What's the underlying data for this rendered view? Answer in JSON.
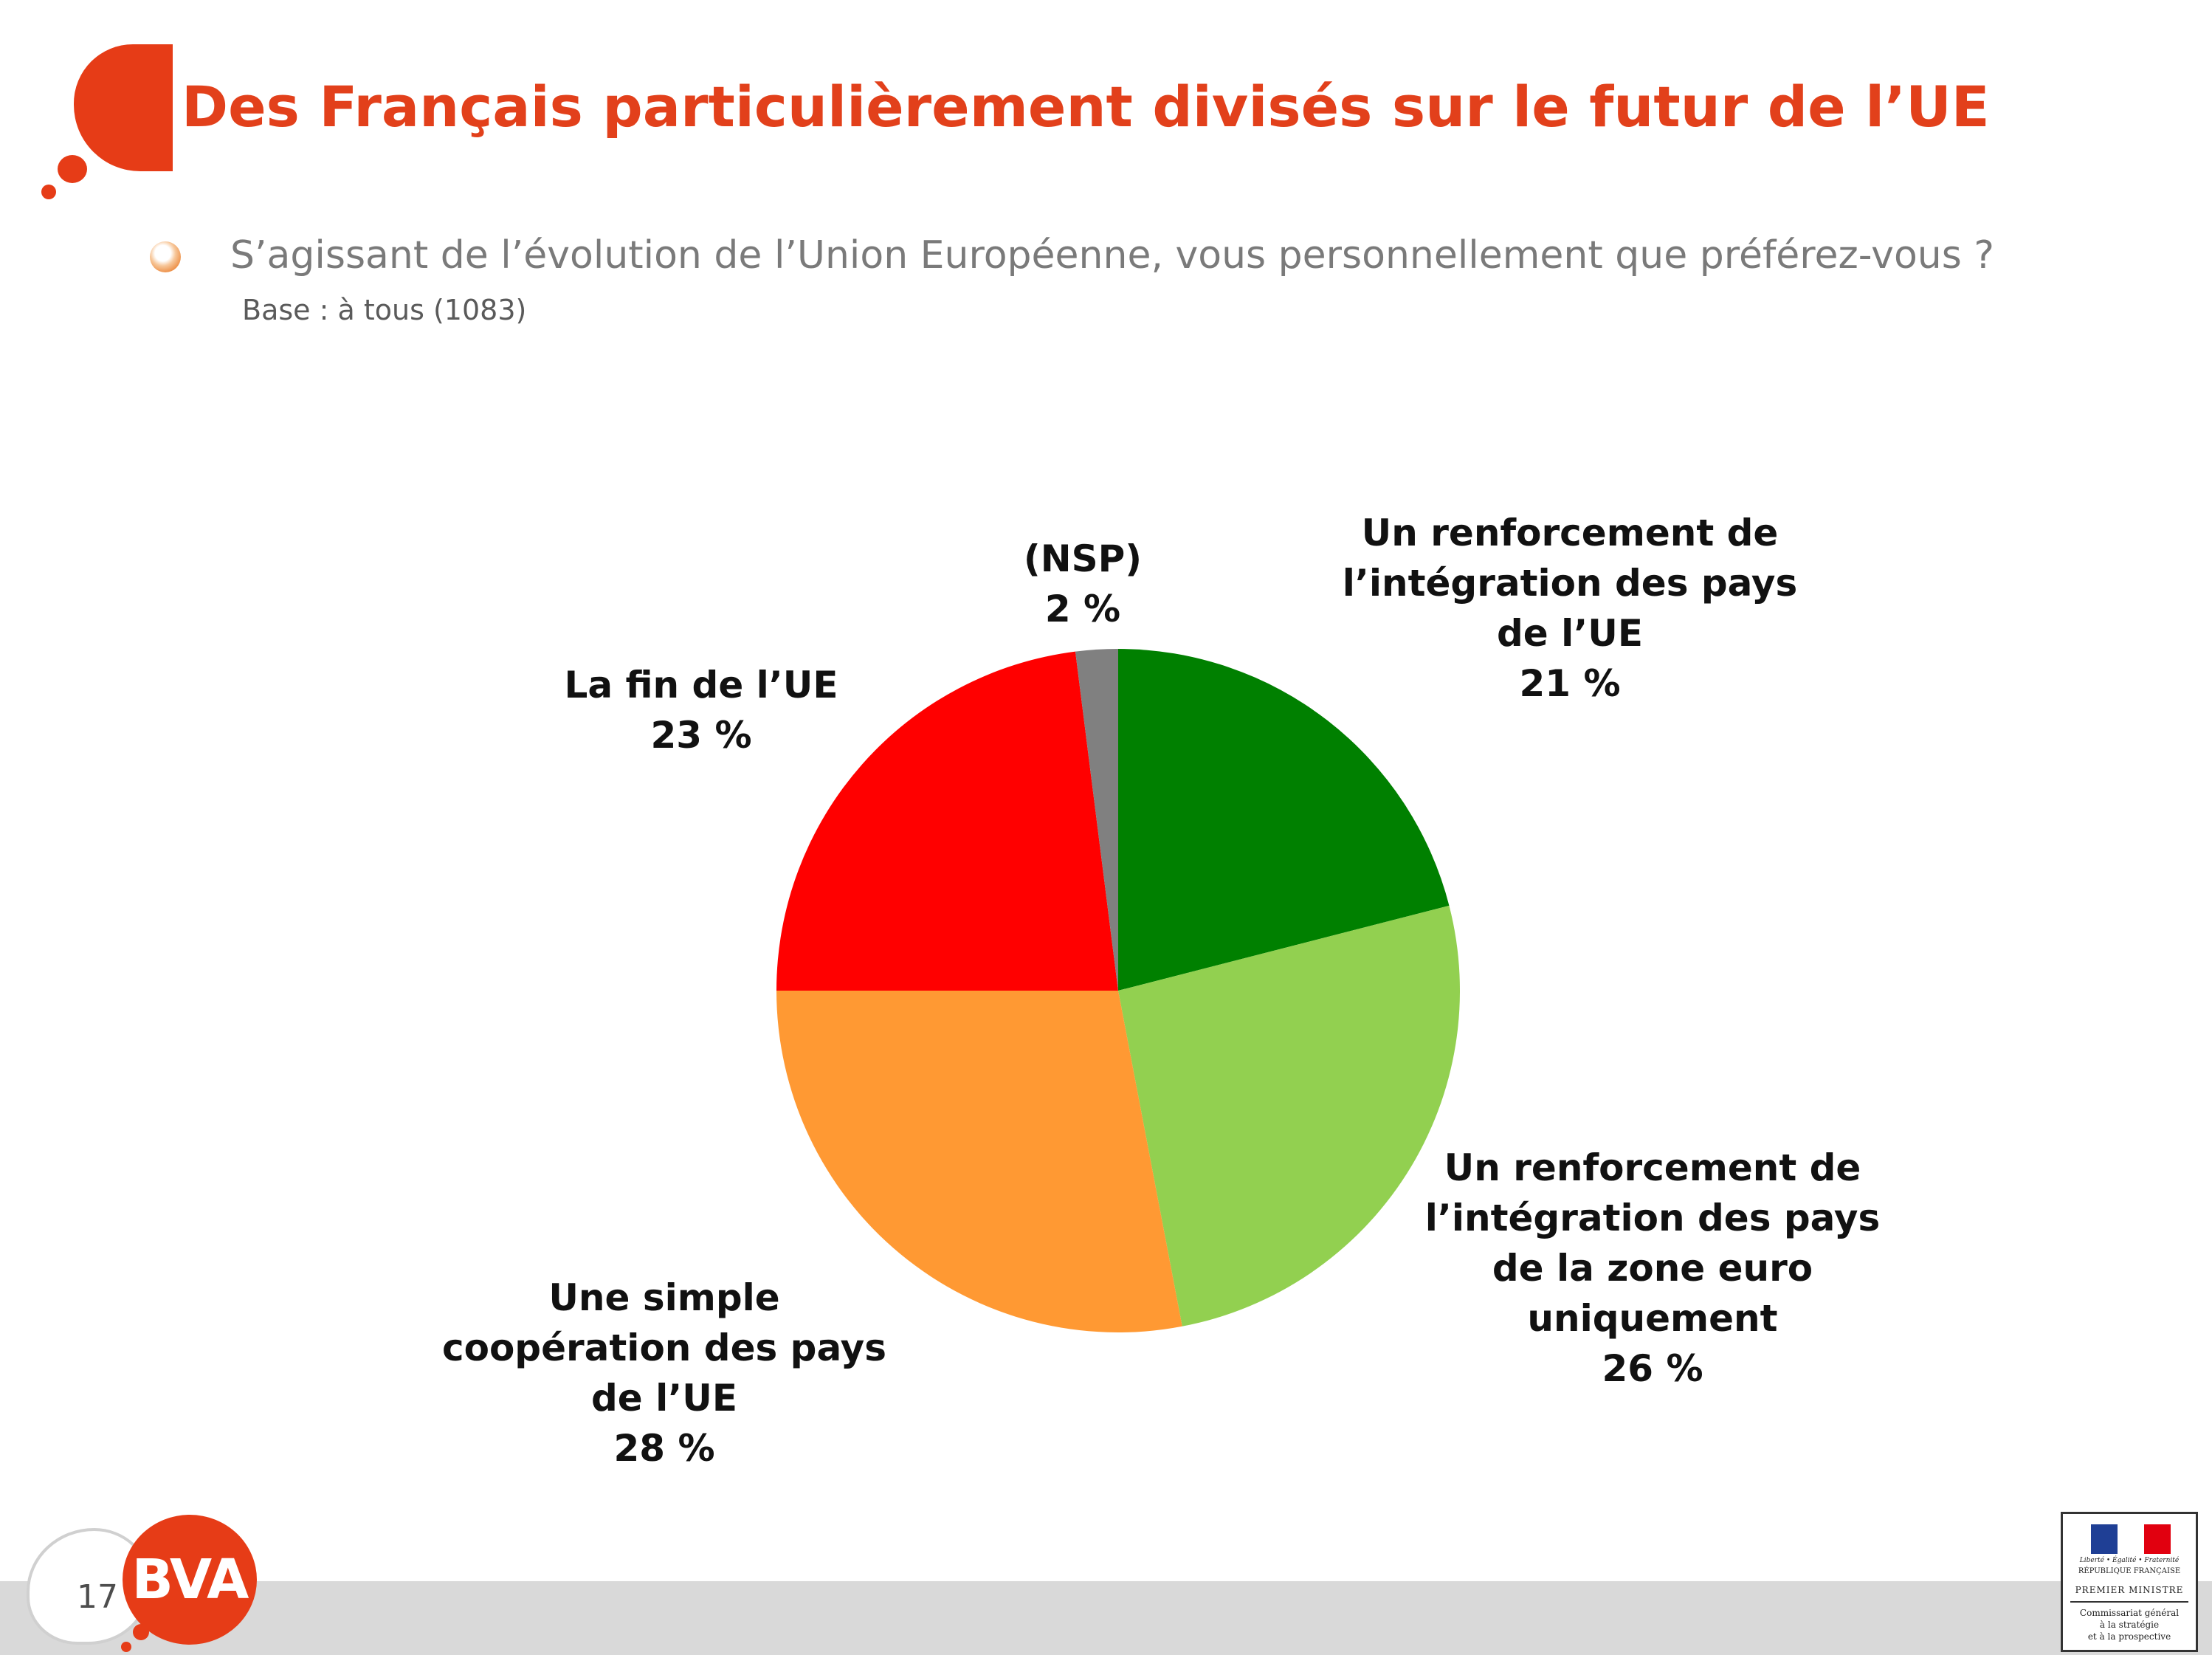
{
  "header": {
    "title": "Des Français particulièrement divisés sur le futur de l’UE",
    "question": "S’agissant de l’évolution de l’Union Européenne, vous personnellement que préférez-vous ?",
    "base": "Base : à tous (1083)"
  },
  "chart_data": {
    "type": "pie",
    "start_angle_deg": 0,
    "direction": "clockwise",
    "slices": [
      {
        "label": "Un renforcement de\nl’intégration des pays\nde l’UE",
        "value": 21,
        "value_label": "21 %",
        "color": "#008000"
      },
      {
        "label": "Un renforcement de\nl’intégration des pays\nde la zone euro\nuniquement",
        "value": 26,
        "value_label": "26 %",
        "color": "#92d050"
      },
      {
        "label": "Une simple\ncoopération des pays\nde l’UE",
        "value": 28,
        "value_label": "28 %",
        "color": "#ff9933"
      },
      {
        "label": "La fin de l’UE",
        "value": 23,
        "value_label": "23 %",
        "color": "#ff0000"
      },
      {
        "label": "(NSP)",
        "value": 2,
        "value_label": "2 %",
        "color": "#808080"
      }
    ]
  },
  "footer": {
    "page_number": "17",
    "brand": "BVA",
    "gov_motto": "Liberté • Égalité • Fraternité",
    "gov_republic": "RÉPUBLIQUE FRANÇAISE",
    "gov_ministry": "PREMIER MINISTRE",
    "gov_commission": "Commissariat général\nà la stratégie\net à la prospective"
  }
}
